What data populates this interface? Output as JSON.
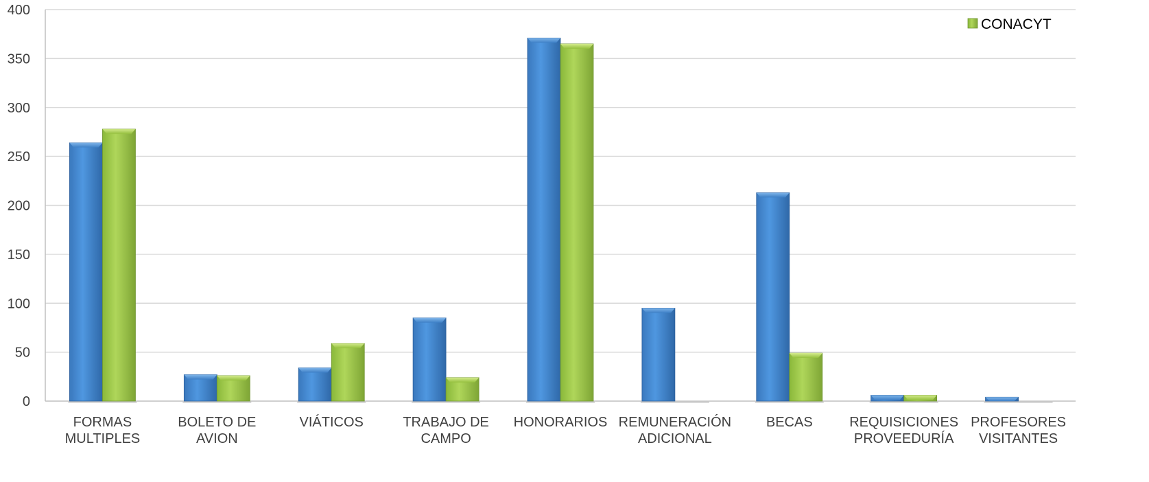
{
  "chart_data": {
    "type": "bar",
    "title": "",
    "xlabel": "",
    "ylabel": "",
    "ylim": [
      0,
      400
    ],
    "yticks": [
      0,
      50,
      100,
      150,
      200,
      250,
      300,
      350,
      400
    ],
    "grid": true,
    "legend_position": "top-right",
    "categories": [
      [
        "FORMAS",
        "MULTIPLES"
      ],
      [
        "BOLETO DE",
        "AVION"
      ],
      [
        "VIÁTICOS"
      ],
      [
        "TRABAJO DE",
        "CAMPO"
      ],
      [
        "HONORARIOS"
      ],
      [
        "REMUNERACIÓN",
        "ADICIONAL"
      ],
      [
        "BECAS"
      ],
      [
        "REQUISICIONES",
        "PROVEEDURÍA"
      ],
      [
        "PROFESORES",
        "VISITANTES"
      ]
    ],
    "series": [
      {
        "color": "#4a8fd6",
        "values": [
          264,
          27,
          34,
          85,
          371,
          95,
          213,
          6,
          4
        ]
      },
      {
        "name": "CONACYT",
        "color": "#9bc545",
        "values": [
          278,
          26,
          59,
          24,
          365,
          0,
          49,
          6,
          0
        ]
      }
    ]
  }
}
